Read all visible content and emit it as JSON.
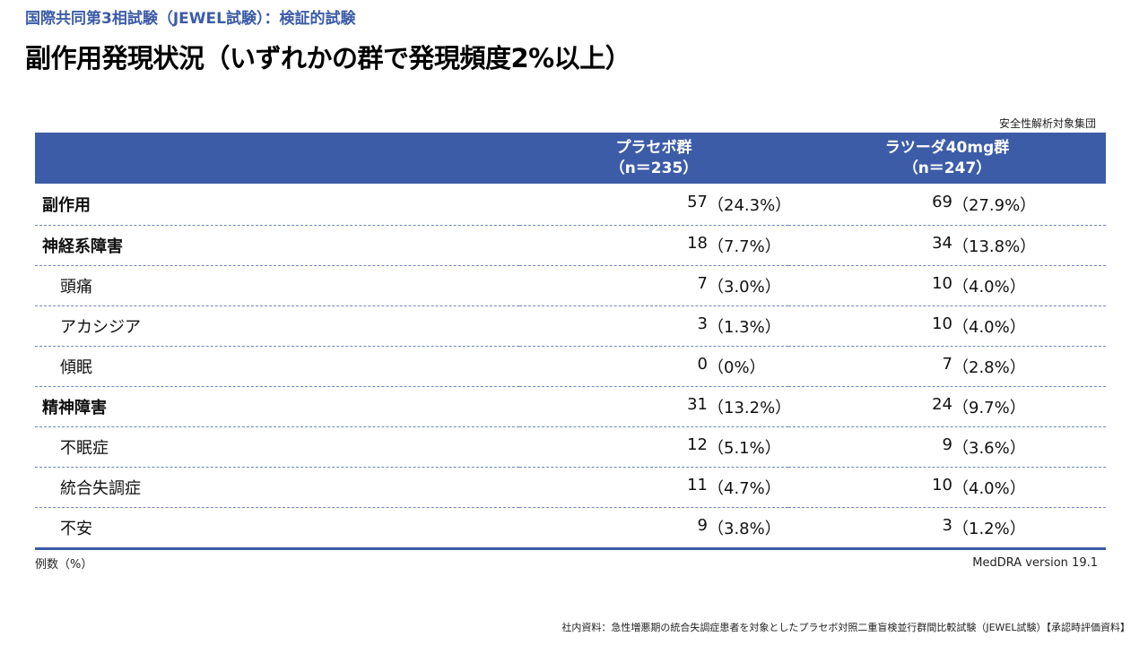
{
  "header": {
    "subtitle": "国際共同第3相試験（JEWEL試験）：検証的試験",
    "title": "副作用発現状況（いずれかの群で発現頻度2%以上）"
  },
  "population_label": "安全性解析対象集団",
  "table": {
    "columns": [
      {
        "name": "",
        "n_label": ""
      },
      {
        "name": "プラセボ群",
        "n_label": "（n＝235）"
      },
      {
        "name": "ラツーダ40mg群",
        "n_label": "（n＝247）"
      }
    ],
    "rows": [
      {
        "label": "副作用",
        "level": 0,
        "placebo_n": "57",
        "placebo_pct": "（24.3%）",
        "latuda_n": "69",
        "latuda_pct": "（27.9%）"
      },
      {
        "label": "神経系障害",
        "level": 0,
        "placebo_n": "18",
        "placebo_pct": "（7.7%）",
        "latuda_n": "34",
        "latuda_pct": "（13.8%）"
      },
      {
        "label": "頭痛",
        "level": 1,
        "placebo_n": "7",
        "placebo_pct": "（3.0%）",
        "latuda_n": "10",
        "latuda_pct": "（4.0%）"
      },
      {
        "label": "アカシジア",
        "level": 1,
        "placebo_n": "3",
        "placebo_pct": "（1.3%）",
        "latuda_n": "10",
        "latuda_pct": "（4.0%）"
      },
      {
        "label": "傾眠",
        "level": 1,
        "placebo_n": "0",
        "placebo_pct": "（0%）",
        "latuda_n": "7",
        "latuda_pct": "（2.8%）"
      },
      {
        "label": "精神障害",
        "level": 0,
        "placebo_n": "31",
        "placebo_pct": "（13.2%）",
        "latuda_n": "24",
        "latuda_pct": "（9.7%）"
      },
      {
        "label": "不眠症",
        "level": 1,
        "placebo_n": "12",
        "placebo_pct": "（5.1%）",
        "latuda_n": "9",
        "latuda_pct": "（3.6%）"
      },
      {
        "label": "統合失調症",
        "level": 1,
        "placebo_n": "11",
        "placebo_pct": "（4.7%）",
        "latuda_n": "10",
        "latuda_pct": "（4.0%）"
      },
      {
        "label": "不安",
        "level": 1,
        "placebo_n": "9",
        "placebo_pct": "（3.8%）",
        "latuda_n": "3",
        "latuda_pct": "（1.2%）"
      }
    ]
  },
  "footnotes": {
    "left": "例数（%）",
    "right": "MedDRA version 19.1",
    "source": "社内資料：急性増悪期の統合失調症患者を対象としたプラセボ対照二重盲検並行群間比較試験（JEWEL試験）【承認時評価資料】"
  },
  "colors": {
    "accent": "#3d5ca8",
    "header_text": "#ffffff",
    "row_divider": "#6f86bd"
  }
}
